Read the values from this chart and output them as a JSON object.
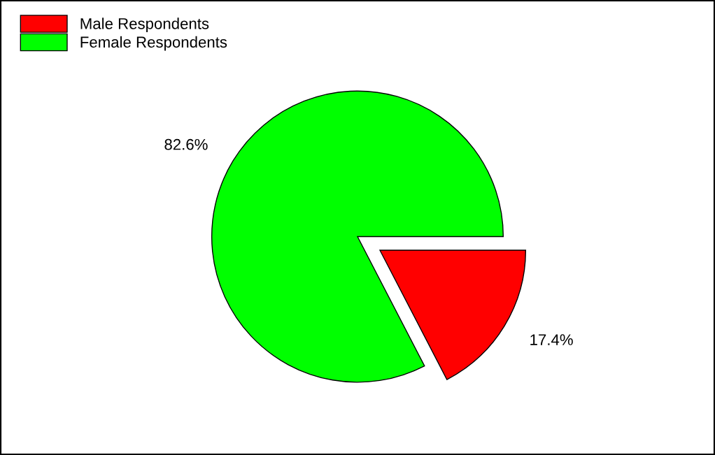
{
  "chart_data": {
    "type": "pie",
    "categories": [
      "Male Respondents",
      "Female Respondents"
    ],
    "values": [
      17.4,
      82.6
    ],
    "colors": [
      "#ff0000",
      "#00ff00"
    ],
    "value_labels": [
      "17.4%",
      "82.6%"
    ],
    "legend": "top left"
  }
}
